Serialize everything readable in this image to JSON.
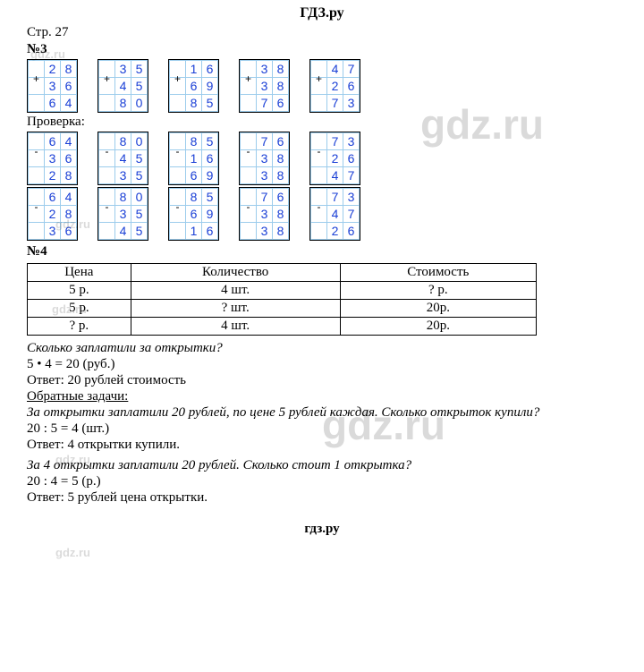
{
  "header": "ГДЗ.ру",
  "page_label": "Стр. 27",
  "problem3": {
    "label": "№3",
    "add_row": [
      {
        "sign": "+",
        "a": [
          "",
          "2",
          "8"
        ],
        "b": [
          "",
          "3",
          "6"
        ],
        "r": [
          "",
          "6",
          "4"
        ]
      },
      {
        "sign": "+",
        "a": [
          "",
          "3",
          "5"
        ],
        "b": [
          "",
          "4",
          "5"
        ],
        "r": [
          "",
          "8",
          "0"
        ]
      },
      {
        "sign": "+",
        "a": [
          "",
          "1",
          "6"
        ],
        "b": [
          "",
          "6",
          "9"
        ],
        "r": [
          "",
          "8",
          "5"
        ]
      },
      {
        "sign": "+",
        "a": [
          "",
          "3",
          "8"
        ],
        "b": [
          "",
          "3",
          "8"
        ],
        "r": [
          "",
          "7",
          "6"
        ]
      },
      {
        "sign": "+",
        "a": [
          "",
          "4",
          "7"
        ],
        "b": [
          "",
          "2",
          "6"
        ],
        "r": [
          "",
          "7",
          "3"
        ]
      }
    ],
    "check_label": "Проверка:",
    "check_row1": [
      {
        "sign": "-",
        "a": [
          "",
          "6",
          "4"
        ],
        "b": [
          "",
          "3",
          "6"
        ],
        "r": [
          "",
          "2",
          "8"
        ]
      },
      {
        "sign": "-",
        "a": [
          "",
          "8",
          "0"
        ],
        "b": [
          "",
          "4",
          "5"
        ],
        "r": [
          "",
          "3",
          "5"
        ]
      },
      {
        "sign": "-",
        "a": [
          "",
          "8",
          "5"
        ],
        "b": [
          "",
          "1",
          "6"
        ],
        "r": [
          "",
          "6",
          "9"
        ]
      },
      {
        "sign": "-",
        "a": [
          "",
          "7",
          "6"
        ],
        "b": [
          "",
          "3",
          "8"
        ],
        "r": [
          "",
          "3",
          "8"
        ]
      },
      {
        "sign": "-",
        "a": [
          "",
          "7",
          "3"
        ],
        "b": [
          "",
          "2",
          "6"
        ],
        "r": [
          "",
          "4",
          "7"
        ]
      }
    ],
    "check_row2": [
      {
        "sign": "-",
        "a": [
          "",
          "6",
          "4"
        ],
        "b": [
          "",
          "2",
          "8"
        ],
        "r": [
          "",
          "3",
          "6"
        ]
      },
      {
        "sign": "-",
        "a": [
          "",
          "8",
          "0"
        ],
        "b": [
          "",
          "3",
          "5"
        ],
        "r": [
          "",
          "4",
          "5"
        ]
      },
      {
        "sign": "-",
        "a": [
          "",
          "8",
          "5"
        ],
        "b": [
          "",
          "6",
          "9"
        ],
        "r": [
          "",
          "1",
          "6"
        ]
      },
      {
        "sign": "-",
        "a": [
          "",
          "7",
          "6"
        ],
        "b": [
          "",
          "3",
          "8"
        ],
        "r": [
          "",
          "3",
          "8"
        ]
      },
      {
        "sign": "-",
        "a": [
          "",
          "7",
          "3"
        ],
        "b": [
          "",
          "4",
          "7"
        ],
        "r": [
          "",
          "2",
          "6"
        ]
      }
    ]
  },
  "problem4": {
    "label": "№4",
    "table": {
      "headers": [
        "Цена",
        "Количество",
        "Стоимость"
      ],
      "rows": [
        [
          "5 р.",
          "4 шт.",
          "? р."
        ],
        [
          "5 р.",
          "? шт.",
          "20р."
        ],
        [
          "? р.",
          "4 шт.",
          "20р."
        ]
      ]
    },
    "q1": "Сколько заплатили за открытки?",
    "calc1": "5 • 4 = 20 (руб.)",
    "ans1": "Ответ: 20 рублей стоимость",
    "inverse_label": "Обратные задачи:",
    "inv1_q": "За открытки заплатили 20 рублей, по цене 5 рублей каждая. Сколько открыток купили?",
    "inv1_calc": "20 : 5 = 4 (шт.)",
    "inv1_ans": "Ответ: 4 открытки купили.",
    "inv2_q": "За 4 открытки заплатили 20 рублей. Сколько стоит 1 открытка?",
    "inv2_calc": "20 : 4 = 5 (р.)",
    "inv2_ans": "Ответ: 5 рублей цена открытки."
  },
  "footer": "гдз.ру",
  "watermarks": {
    "big": "gdz.ru",
    "small": "gdz.ru"
  }
}
